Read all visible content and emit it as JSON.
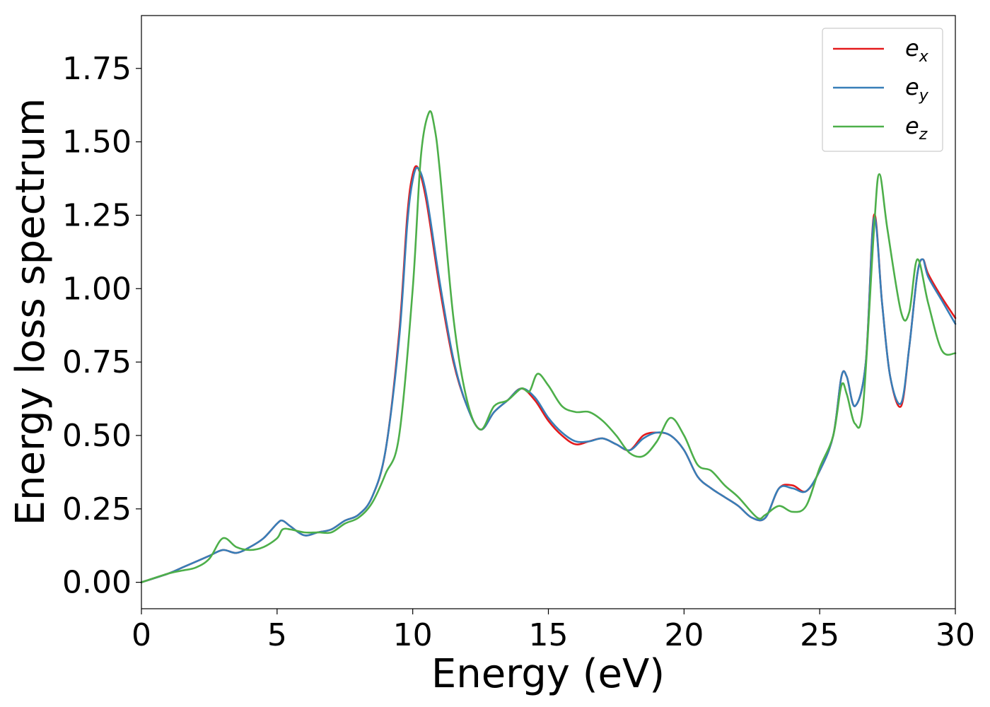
{
  "chart_data": {
    "type": "line",
    "title": "",
    "xlabel": "Energy (eV)",
    "ylabel": "Energy loss spectrum",
    "xlim": [
      0,
      30
    ],
    "ylim": [
      -0.09,
      1.93
    ],
    "xticks": [
      0,
      5,
      10,
      15,
      20,
      25,
      30
    ],
    "xtick_labels": [
      "0",
      "5",
      "10",
      "15",
      "20",
      "25",
      "30"
    ],
    "yticks": [
      0,
      0.25,
      0.5,
      0.75,
      1.0,
      1.25,
      1.5,
      1.75
    ],
    "ytick_labels": [
      "0.00",
      "0.25",
      "0.50",
      "0.75",
      "1.00",
      "1.25",
      "1.50",
      "1.75"
    ],
    "grid": false,
    "legend_position": "top-right",
    "series": [
      {
        "name": "e_x",
        "label_base": "e",
        "label_sub": "x",
        "color": "#e41a1c",
        "x": [
          0,
          1,
          1.5,
          2,
          2.5,
          3,
          3.5,
          4,
          4.5,
          5,
          5.2,
          5.5,
          6,
          6.5,
          7,
          7.5,
          8,
          8.5,
          9,
          9.5,
          9.8,
          10,
          10.2,
          10.5,
          11,
          11.5,
          12,
          12.5,
          13,
          13.5,
          14,
          14.5,
          15,
          15.5,
          16,
          16.5,
          17,
          17.5,
          18,
          18.5,
          19,
          19.5,
          20,
          20.5,
          21,
          21.5,
          22,
          22.5,
          23,
          23.5,
          24,
          24.5,
          25,
          25.5,
          25.8,
          26,
          26.3,
          26.7,
          27,
          27.3,
          27.6,
          28,
          28.3,
          28.6,
          28.8,
          29,
          29.5,
          30
        ],
        "y": [
          0.0,
          0.03,
          0.05,
          0.07,
          0.09,
          0.11,
          0.1,
          0.12,
          0.15,
          0.2,
          0.21,
          0.19,
          0.16,
          0.17,
          0.18,
          0.21,
          0.23,
          0.29,
          0.45,
          0.85,
          1.25,
          1.39,
          1.41,
          1.3,
          1.0,
          0.75,
          0.6,
          0.52,
          0.58,
          0.62,
          0.66,
          0.62,
          0.55,
          0.5,
          0.47,
          0.48,
          0.49,
          0.47,
          0.45,
          0.5,
          0.51,
          0.5,
          0.45,
          0.36,
          0.32,
          0.29,
          0.26,
          0.22,
          0.22,
          0.32,
          0.33,
          0.31,
          0.38,
          0.5,
          0.7,
          0.7,
          0.6,
          0.75,
          1.25,
          0.95,
          0.7,
          0.6,
          0.8,
          1.05,
          1.1,
          1.05,
          0.97,
          0.9
        ]
      },
      {
        "name": "e_y",
        "label_base": "e",
        "label_sub": "y",
        "color": "#377eb8",
        "x": [
          0,
          1,
          1.5,
          2,
          2.5,
          3,
          3.5,
          4,
          4.5,
          5,
          5.2,
          5.5,
          6,
          6.5,
          7,
          7.5,
          8,
          8.5,
          9,
          9.5,
          9.8,
          10,
          10.2,
          10.5,
          11,
          11.5,
          12,
          12.5,
          13,
          13.5,
          14,
          14.5,
          15,
          15.5,
          16,
          16.5,
          17,
          17.5,
          18,
          18.5,
          19,
          19.5,
          20,
          20.5,
          21,
          21.5,
          22,
          22.5,
          23,
          23.5,
          24,
          24.5,
          25,
          25.5,
          25.8,
          26,
          26.3,
          26.7,
          27,
          27.3,
          27.6,
          28,
          28.3,
          28.6,
          28.8,
          29,
          29.5,
          30
        ],
        "y": [
          0.0,
          0.03,
          0.05,
          0.07,
          0.09,
          0.11,
          0.1,
          0.12,
          0.15,
          0.2,
          0.21,
          0.19,
          0.16,
          0.17,
          0.18,
          0.21,
          0.23,
          0.29,
          0.45,
          0.83,
          1.22,
          1.37,
          1.41,
          1.32,
          1.02,
          0.76,
          0.6,
          0.52,
          0.58,
          0.62,
          0.66,
          0.63,
          0.56,
          0.51,
          0.48,
          0.48,
          0.49,
          0.47,
          0.45,
          0.49,
          0.51,
          0.5,
          0.45,
          0.36,
          0.32,
          0.29,
          0.26,
          0.22,
          0.22,
          0.32,
          0.32,
          0.31,
          0.38,
          0.5,
          0.7,
          0.7,
          0.6,
          0.75,
          1.24,
          0.95,
          0.7,
          0.61,
          0.8,
          1.05,
          1.1,
          1.04,
          0.96,
          0.88
        ]
      },
      {
        "name": "e_z",
        "label_base": "e",
        "label_sub": "z",
        "color": "#4daf4a",
        "x": [
          0,
          1,
          1.5,
          2,
          2.5,
          3,
          3.5,
          4,
          4.5,
          5,
          5.2,
          5.5,
          6,
          6.5,
          7,
          7.5,
          8,
          8.5,
          9,
          9.5,
          10,
          10.3,
          10.6,
          10.8,
          11,
          11.5,
          12,
          12.5,
          13,
          13.5,
          14,
          14.3,
          14.6,
          15,
          15.5,
          16,
          16.5,
          17,
          17.5,
          18,
          18.5,
          19,
          19.5,
          20,
          20.5,
          21,
          21.5,
          22,
          22.7,
          23,
          23.5,
          24,
          24.5,
          25,
          25.5,
          25.8,
          26,
          26.3,
          26.6,
          27,
          27.2,
          27.5,
          28,
          28.3,
          28.6,
          29,
          29.5,
          30
        ],
        "y": [
          0.0,
          0.03,
          0.04,
          0.05,
          0.08,
          0.15,
          0.12,
          0.11,
          0.12,
          0.15,
          0.18,
          0.18,
          0.17,
          0.17,
          0.17,
          0.2,
          0.22,
          0.27,
          0.37,
          0.5,
          1.0,
          1.45,
          1.6,
          1.55,
          1.4,
          0.9,
          0.62,
          0.52,
          0.6,
          0.62,
          0.66,
          0.65,
          0.71,
          0.67,
          0.6,
          0.58,
          0.58,
          0.55,
          0.5,
          0.44,
          0.43,
          0.48,
          0.56,
          0.5,
          0.4,
          0.38,
          0.33,
          0.29,
          0.22,
          0.23,
          0.26,
          0.24,
          0.26,
          0.39,
          0.5,
          0.67,
          0.64,
          0.54,
          0.6,
          1.2,
          1.39,
          1.2,
          0.92,
          0.92,
          1.1,
          0.95,
          0.79,
          0.78
        ]
      }
    ]
  }
}
